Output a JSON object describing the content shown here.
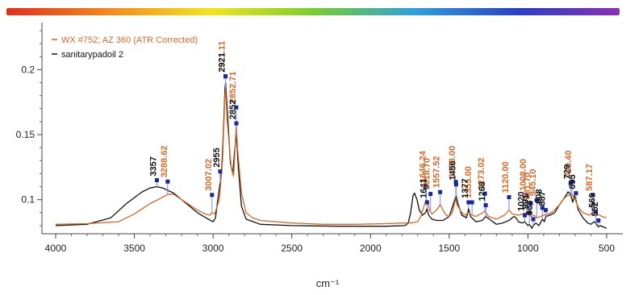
{
  "colors": {
    "rainbow": [
      "#e03020",
      "#f08a20",
      "#f2e420",
      "#7ccc30",
      "#30a0d8",
      "#2a40c0",
      "#8a30b0"
    ],
    "series_orange": "#d2692a",
    "series_black": "#111111",
    "peak_marker": "#1a2a90",
    "leader_line": "#7d87d6"
  },
  "chart_data": {
    "type": "line",
    "xlabel": "cm⁻¹",
    "ylabel": "",
    "x_reversed": true,
    "xlim": [
      4000,
      500
    ],
    "ylim": [
      0.075,
      0.235
    ],
    "x_ticks": [
      "4000",
      "3500",
      "3000",
      "2500",
      "2000",
      "1500",
      "1000",
      "500"
    ],
    "x_tick_values": [
      4000,
      3500,
      3000,
      2500,
      2000,
      1500,
      1000,
      500
    ],
    "y_ticks": [
      "0.1",
      "0.15",
      "0.2"
    ],
    "y_tick_values": [
      0.1,
      0.15,
      0.2
    ],
    "legend_position": "top-left",
    "series": [
      {
        "name": "WX #752; AZ 360 (ATR Corrected)",
        "color": "#d2692a",
        "points": [
          [
            4000,
            0.081
          ],
          [
            3800,
            0.0815
          ],
          [
            3600,
            0.083
          ],
          [
            3500,
            0.089
          ],
          [
            3400,
            0.097
          ],
          [
            3350,
            0.1
          ],
          [
            3288,
            0.104
          ],
          [
            3250,
            0.104
          ],
          [
            3200,
            0.1
          ],
          [
            3150,
            0.096
          ],
          [
            3100,
            0.092
          ],
          [
            3050,
            0.089
          ],
          [
            3020,
            0.088
          ],
          [
            3007,
            0.09
          ],
          [
            2990,
            0.089
          ],
          [
            2960,
            0.1
          ],
          [
            2940,
            0.13
          ],
          [
            2925,
            0.18
          ],
          [
            2921,
            0.185
          ],
          [
            2910,
            0.16
          ],
          [
            2885,
            0.125
          ],
          [
            2870,
            0.118
          ],
          [
            2860,
            0.14
          ],
          [
            2853,
            0.158
          ],
          [
            2845,
            0.14
          ],
          [
            2820,
            0.105
          ],
          [
            2790,
            0.09
          ],
          [
            2750,
            0.086
          ],
          [
            2700,
            0.084
          ],
          [
            2500,
            0.082
          ],
          [
            2300,
            0.081
          ],
          [
            2100,
            0.081
          ],
          [
            1900,
            0.0815
          ],
          [
            1800,
            0.082
          ],
          [
            1750,
            0.082
          ],
          [
            1700,
            0.083
          ],
          [
            1680,
            0.087
          ],
          [
            1660,
            0.095
          ],
          [
            1646,
            0.1
          ],
          [
            1635,
            0.097
          ],
          [
            1625,
            0.092
          ],
          [
            1610,
            0.089
          ],
          [
            1580,
            0.092
          ],
          [
            1557,
            0.096
          ],
          [
            1540,
            0.092
          ],
          [
            1520,
            0.088
          ],
          [
            1500,
            0.087
          ],
          [
            1480,
            0.09
          ],
          [
            1465,
            0.098
          ],
          [
            1458,
            0.1
          ],
          [
            1450,
            0.096
          ],
          [
            1420,
            0.09
          ],
          [
            1400,
            0.088
          ],
          [
            1380,
            0.09
          ],
          [
            1355,
            0.088
          ],
          [
            1330,
            0.087
          ],
          [
            1273,
            0.091
          ],
          [
            1250,
            0.087
          ],
          [
            1200,
            0.085
          ],
          [
            1150,
            0.088
          ],
          [
            1120,
            0.092
          ],
          [
            1100,
            0.089
          ],
          [
            1060,
            0.088
          ],
          [
            1008,
            0.09
          ],
          [
            980,
            0.087
          ],
          [
            960,
            0.088
          ],
          [
            945,
            0.086
          ],
          [
            920,
            0.087
          ],
          [
            900,
            0.088
          ],
          [
            870,
            0.089
          ],
          [
            840,
            0.091
          ],
          [
            800,
            0.096
          ],
          [
            770,
            0.101
          ],
          [
            750,
            0.103
          ],
          [
            720,
            0.104
          ],
          [
            700,
            0.1
          ],
          [
            680,
            0.094
          ],
          [
            650,
            0.09
          ],
          [
            610,
            0.088
          ],
          [
            587,
            0.09
          ],
          [
            560,
            0.089
          ],
          [
            530,
            0.087
          ],
          [
            500,
            0.086
          ]
        ],
        "peak_labels": [
          {
            "x": 3288.62,
            "label": "3288.62"
          },
          {
            "x": 3007.02,
            "label": "3007.02"
          },
          {
            "x": 2921.11,
            "label": "2921.11"
          },
          {
            "x": 2852.71,
            "label": "2852.71"
          },
          {
            "x": 1646.24,
            "label": "1646.24"
          },
          {
            "x": 1618.7,
            "label": "1618.70"
          },
          {
            "x": 1557.52,
            "label": "1557.52"
          },
          {
            "x": 1458.0,
            "label": "1458.00"
          },
          {
            "x": 1355.0,
            "label": "1355.00"
          },
          {
            "x": 1273.02,
            "label": "1273.02"
          },
          {
            "x": 1120.0,
            "label": "1120.00"
          },
          {
            "x": 1008.0,
            "label": "1008.00"
          },
          {
            "x": 981.7,
            "label": "981.70"
          },
          {
            "x": 945.1,
            "label": "945.10"
          },
          {
            "x": 720.4,
            "label": "720.40"
          },
          {
            "x": 587.17,
            "label": "587.17"
          }
        ]
      },
      {
        "name": "sanitarypadoil 2",
        "color": "#111111",
        "points": [
          [
            4000,
            0.08
          ],
          [
            3800,
            0.081
          ],
          [
            3650,
            0.086
          ],
          [
            3550,
            0.097
          ],
          [
            3450,
            0.106
          ],
          [
            3400,
            0.109
          ],
          [
            3357,
            0.11
          ],
          [
            3320,
            0.109
          ],
          [
            3250,
            0.105
          ],
          [
            3200,
            0.1
          ],
          [
            3150,
            0.095
          ],
          [
            3100,
            0.09
          ],
          [
            3060,
            0.087
          ],
          [
            3030,
            0.085
          ],
          [
            3000,
            0.083
          ],
          [
            2985,
            0.086
          ],
          [
            2970,
            0.1
          ],
          [
            2955,
            0.113
          ],
          [
            2945,
            0.125
          ],
          [
            2935,
            0.15
          ],
          [
            2925,
            0.185
          ],
          [
            2921,
            0.19
          ],
          [
            2910,
            0.17
          ],
          [
            2890,
            0.128
          ],
          [
            2875,
            0.12
          ],
          [
            2865,
            0.135
          ],
          [
            2852,
            0.15
          ],
          [
            2840,
            0.125
          ],
          [
            2820,
            0.095
          ],
          [
            2790,
            0.085
          ],
          [
            2700,
            0.081
          ],
          [
            2500,
            0.08
          ],
          [
            2200,
            0.0795
          ],
          [
            1900,
            0.0795
          ],
          [
            1780,
            0.08
          ],
          [
            1760,
            0.082
          ],
          [
            1745,
            0.09
          ],
          [
            1730,
            0.103
          ],
          [
            1720,
            0.105
          ],
          [
            1705,
            0.1
          ],
          [
            1690,
            0.092
          ],
          [
            1670,
            0.088
          ],
          [
            1650,
            0.09
          ],
          [
            1641,
            0.093
          ],
          [
            1630,
            0.088
          ],
          [
            1610,
            0.085
          ],
          [
            1580,
            0.084
          ],
          [
            1540,
            0.084
          ],
          [
            1500,
            0.087
          ],
          [
            1470,
            0.098
          ],
          [
            1456,
            0.103
          ],
          [
            1445,
            0.097
          ],
          [
            1420,
            0.088
          ],
          [
            1390,
            0.086
          ],
          [
            1377,
            0.093
          ],
          [
            1365,
            0.087
          ],
          [
            1330,
            0.083
          ],
          [
            1290,
            0.084
          ],
          [
            1268,
            0.087
          ],
          [
            1245,
            0.085
          ],
          [
            1200,
            0.081
          ],
          [
            1160,
            0.082
          ],
          [
            1120,
            0.084
          ],
          [
            1090,
            0.087
          ],
          [
            1075,
            0.086
          ],
          [
            1060,
            0.083
          ],
          [
            1035,
            0.082
          ],
          [
            1020,
            0.083
          ],
          [
            1000,
            0.08
          ],
          [
            991,
            0.081
          ],
          [
            975,
            0.078
          ],
          [
            966,
            0.08
          ],
          [
            950,
            0.082
          ],
          [
            930,
            0.08
          ],
          [
            908,
            0.085
          ],
          [
            895,
            0.083
          ],
          [
            887,
            0.087
          ],
          [
            860,
            0.088
          ],
          [
            830,
            0.09
          ],
          [
            800,
            0.096
          ],
          [
            760,
            0.103
          ],
          [
            745,
            0.106
          ],
          [
            729,
            0.104
          ],
          [
            715,
            0.098
          ],
          [
            705,
            0.103
          ],
          [
            695,
            0.1
          ],
          [
            680,
            0.092
          ],
          [
            650,
            0.086
          ],
          [
            620,
            0.082
          ],
          [
            600,
            0.081
          ],
          [
            580,
            0.083
          ],
          [
            569,
            0.082
          ],
          [
            560,
            0.08
          ],
          [
            552,
            0.079
          ],
          [
            540,
            0.08
          ],
          [
            520,
            0.079
          ],
          [
            500,
            0.078
          ]
        ],
        "peak_labels": [
          {
            "x": 3357,
            "label": "3357"
          },
          {
            "x": 2955,
            "label": "2955"
          },
          {
            "x": 2921,
            "label": "2921"
          },
          {
            "x": 2852,
            "label": "2852"
          },
          {
            "x": 1641,
            "label": "1641"
          },
          {
            "x": 1456,
            "label": "1456"
          },
          {
            "x": 1377,
            "label": "1377"
          },
          {
            "x": 1268,
            "label": "1268"
          },
          {
            "x": 1020,
            "label": "1020"
          },
          {
            "x": 991,
            "label": "991"
          },
          {
            "x": 966,
            "label": "966"
          },
          {
            "x": 908,
            "label": "908"
          },
          {
            "x": 887,
            "label": "887"
          },
          {
            "x": 729,
            "label": "729"
          },
          {
            "x": 695,
            "label": "695"
          },
          {
            "x": 569,
            "label": "569"
          },
          {
            "x": 552,
            "label": "552"
          }
        ]
      }
    ]
  }
}
